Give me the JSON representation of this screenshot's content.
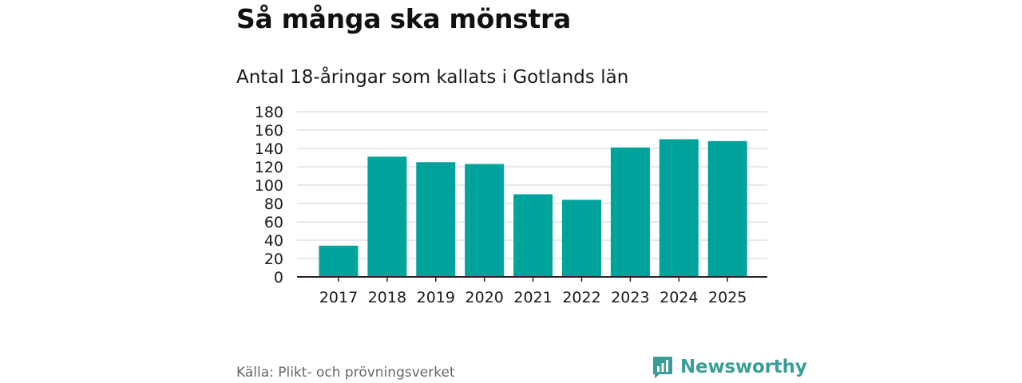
{
  "title": "Så många ska mönstra",
  "subtitle": "Antal 18-åringar som kallats i Gotlands län",
  "source": "Källa: Plikt- och prövningsverket",
  "brand": {
    "name": "Newsworthy",
    "icon": "newsworthy-logo-icon",
    "color": "#3a9e96"
  },
  "colors": {
    "bar": "#00a39b",
    "grid": "#d9d9d9",
    "axis": "#222222"
  },
  "chart_data": {
    "type": "bar",
    "title": "Så många ska mönstra",
    "subtitle": "Antal 18-åringar som kallats i Gotlands län",
    "xlabel": "",
    "ylabel": "",
    "categories": [
      "2017",
      "2018",
      "2019",
      "2020",
      "2021",
      "2022",
      "2023",
      "2024",
      "2025"
    ],
    "values": [
      34,
      131,
      125,
      123,
      90,
      84,
      141,
      150,
      148
    ],
    "ylim": [
      0,
      180
    ],
    "yticks": [
      0,
      20,
      40,
      60,
      80,
      100,
      120,
      140,
      160,
      180
    ],
    "grid": true,
    "legend": "none"
  }
}
